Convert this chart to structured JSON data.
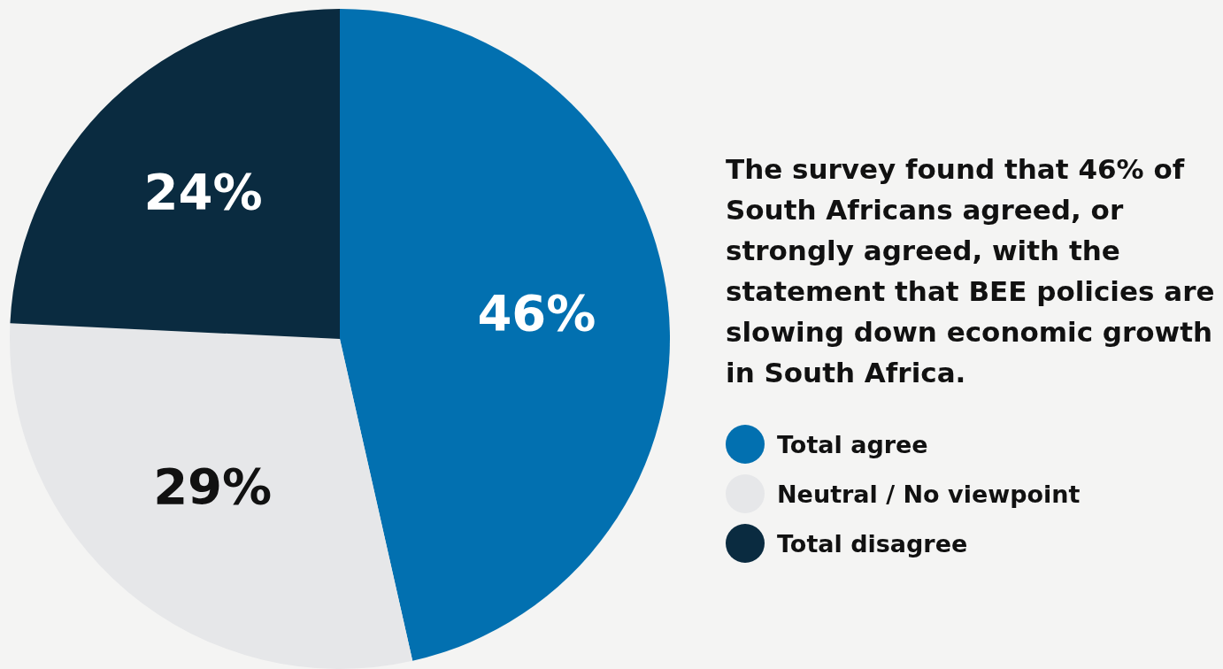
{
  "chart_data": {
    "type": "pie",
    "title": "The survey found that 46% of South Africans agreed, or strongly agreed, with the statement that BEE policies are slowing down economic growth in South Africa.",
    "categories": [
      "Total agree",
      "Neutral / No viewpoint",
      "Total disagree"
    ],
    "values": [
      46,
      29,
      24
    ],
    "colors": [
      "#0270b0",
      "#e6e7e9",
      "#0a2b40"
    ],
    "value_labels": [
      "46%",
      "29%",
      "24%"
    ],
    "legend": "right"
  }
}
